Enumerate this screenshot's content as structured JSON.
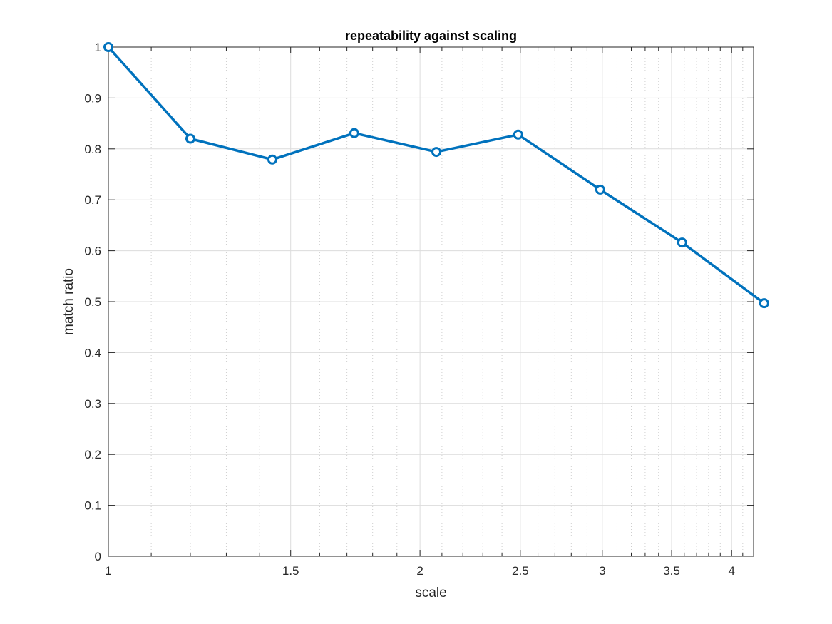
{
  "chart_data": {
    "type": "line",
    "title": "repeatability against scaling",
    "xlabel": "scale",
    "ylabel": "match ratio",
    "xscale": "log",
    "xlim": [
      1,
      4.2
    ],
    "ylim": [
      0,
      1
    ],
    "xticks": [
      1,
      1.5,
      2,
      2.5,
      3,
      3.5,
      4
    ],
    "xtick_labels": [
      "1",
      "1.5",
      "2",
      "2.5",
      "3",
      "3.5",
      "4"
    ],
    "yticks": [
      0,
      0.1,
      0.2,
      0.3,
      0.4,
      0.5,
      0.6,
      0.7,
      0.8,
      0.9,
      1
    ],
    "ytick_labels": [
      "0",
      "0.1",
      "0.2",
      "0.3",
      "0.4",
      "0.5",
      "0.6",
      "0.7",
      "0.8",
      "0.9",
      "1"
    ],
    "grid": true,
    "minor_grid": true,
    "legend": "none",
    "series": [
      {
        "color": "#0072BD",
        "marker": "circle",
        "x": [
          1,
          1.2,
          1.44,
          1.728,
          2.074,
          2.488,
          2.986,
          3.583,
          4.3
        ],
        "y": [
          1.0,
          0.82,
          0.779,
          0.831,
          0.794,
          0.828,
          0.72,
          0.616,
          0.497
        ]
      }
    ]
  }
}
